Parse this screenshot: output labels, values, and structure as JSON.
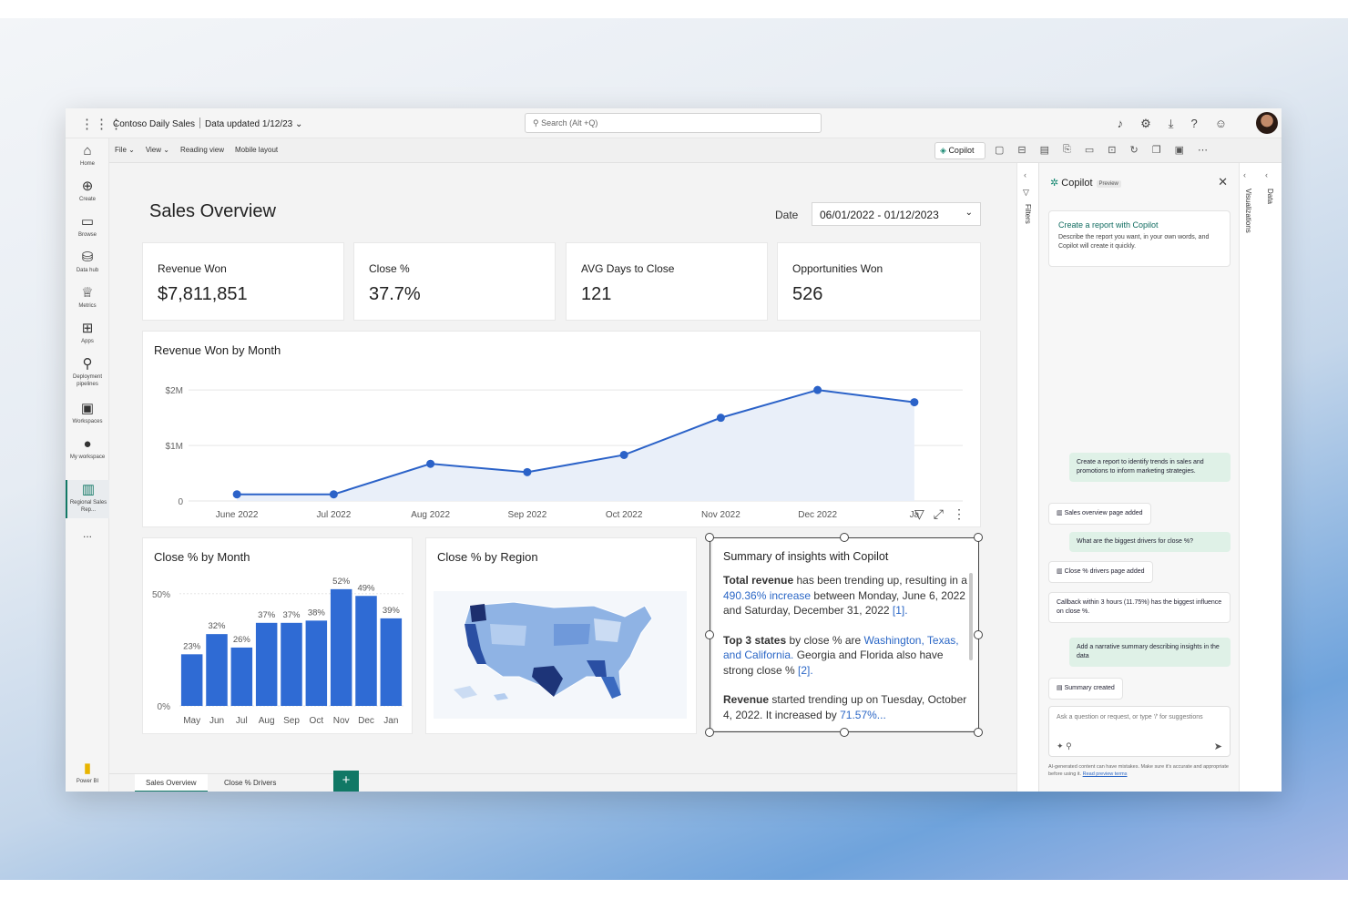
{
  "app": {
    "title": "Contoso Daily Sales",
    "data_updated": "Data updated 1/12/23",
    "search_placeholder": "Search (Alt +Q)"
  },
  "rail": [
    {
      "id": "home",
      "label": "Home",
      "icon": "home-icon"
    },
    {
      "id": "create",
      "label": "Create",
      "icon": "plus-circle-icon"
    },
    {
      "id": "browse",
      "label": "Browse",
      "icon": "folder-icon"
    },
    {
      "id": "datahub",
      "label": "Data hub",
      "icon": "database-icon"
    },
    {
      "id": "metrics",
      "label": "Metrics",
      "icon": "trophy-icon"
    },
    {
      "id": "apps",
      "label": "Apps",
      "icon": "apps-icon"
    },
    {
      "id": "deploy",
      "label": "Deployment pipelines",
      "icon": "rocket-icon"
    },
    {
      "id": "workspaces",
      "label": "Workspaces",
      "icon": "workspaces-icon"
    },
    {
      "id": "myworkspace",
      "label": "My workspace",
      "icon": "avatar-icon"
    },
    {
      "id": "regional",
      "label": "Regional Sales Rep...",
      "icon": "report-icon"
    },
    {
      "id": "more",
      "label": "...",
      "icon": "more-icon"
    },
    {
      "id": "powerbi",
      "label": "Power BI",
      "icon": "powerbi-icon"
    }
  ],
  "ribbon": {
    "file": "File",
    "view": "View",
    "reading": "Reading view",
    "mobile": "Mobile layout",
    "copilot": "Copilot"
  },
  "report": {
    "title": "Sales Overview",
    "date_label": "Date",
    "date_value": "06/01/2022 - 01/12/2023",
    "kpis": [
      {
        "label": "Revenue Won",
        "value": "$7,811,851"
      },
      {
        "label": "Close %",
        "value": "37.7%"
      },
      {
        "label": "AVG Days to Close",
        "value": "121"
      },
      {
        "label": "Opportunities Won",
        "value": "526"
      }
    ],
    "summary": {
      "title": "Summary of insights with Copilot",
      "p1_b": "Total revenue",
      "p1_a": " has been trending up, resulting in a ",
      "p1_link": "490.36% increase",
      "p1_c": " between Monday, June 6, 2022 and Saturday, December 31, 2022 ",
      "p1_ref": "[1].",
      "p2_b": "Top 3 states",
      "p2_a": " by close % are ",
      "p2_link": "Washington, Texas, and California.",
      "p2_c": " Georgia and Florida also have strong close % ",
      "p2_ref": "[2].",
      "p3_b": "Revenue",
      "p3_a": " started trending up on Tuesday, October 4, 2022. It increased by ",
      "p3_link": "71.57%..."
    },
    "map_title": "Close % by Region"
  },
  "tabs": {
    "sales": "Sales Overview",
    "drivers": "Close % Drivers",
    "add": "+"
  },
  "panes": {
    "filters": "Filters",
    "visualizations": "Visualizations",
    "data": "Data"
  },
  "copilot": {
    "title": "Copilot",
    "badge": "Preview",
    "card_title": "Create a report with Copilot",
    "card_desc": "Describe the report you want, in your own words, and Copilot will create it quickly.",
    "messages": [
      {
        "role": "user",
        "text": "Create a report to identify trends in sales and promotions to inform marketing strategies."
      },
      {
        "role": "bot",
        "text": "Sales overview page added"
      },
      {
        "role": "user",
        "text": "What are the biggest drivers for close %?"
      },
      {
        "role": "bot",
        "text": "Close % drivers page added"
      },
      {
        "role": "bot",
        "text": "Callback within 3 hours (11.75%) has the biggest influence on close %."
      },
      {
        "role": "user",
        "text": "Add a narrative summary describing insights in the data"
      },
      {
        "role": "bot",
        "text": "Summary created"
      }
    ],
    "input_placeholder": "Ask a question or request, or type '/' for suggestions",
    "footer": "AI-generated content can have mistakes. Make sure it's accurate and appropriate before using it.",
    "footer_link": "Read preview terms"
  },
  "colors": {
    "accent": "#117865",
    "line": "#2b62c8",
    "bar": "#2f6bd4"
  },
  "chart_data": [
    {
      "type": "area",
      "title": "Revenue Won by Month",
      "categories": [
        "June 2022",
        "Jul 2022",
        "Aug 2022",
        "Sep 2022",
        "Oct 2022",
        "Nov 2022",
        "Dec 2022",
        "Ja"
      ],
      "values": [
        0.12,
        0.12,
        0.67,
        0.52,
        0.83,
        1.5,
        2.0,
        1.78
      ],
      "ylim": [
        0,
        2.2
      ],
      "yticks": [
        "0",
        "$1M",
        "$2M"
      ],
      "ytick_values": [
        0,
        1,
        2
      ],
      "grid": true
    },
    {
      "type": "bar",
      "title": "Close % by Month",
      "categories": [
        "May",
        "Jun",
        "Jul",
        "Aug",
        "Sep",
        "Oct",
        "Nov",
        "Dec",
        "Jan"
      ],
      "values": [
        23,
        32,
        26,
        37,
        37,
        38,
        52,
        49,
        39
      ],
      "labels": [
        "23%",
        "32%",
        "26%",
        "37%",
        "37%",
        "38%",
        "52%",
        "49%",
        "39%"
      ],
      "ylim": [
        0,
        56
      ],
      "yticks": [
        "0%",
        "50%"
      ],
      "ytick_values": [
        0,
        50
      ]
    }
  ]
}
